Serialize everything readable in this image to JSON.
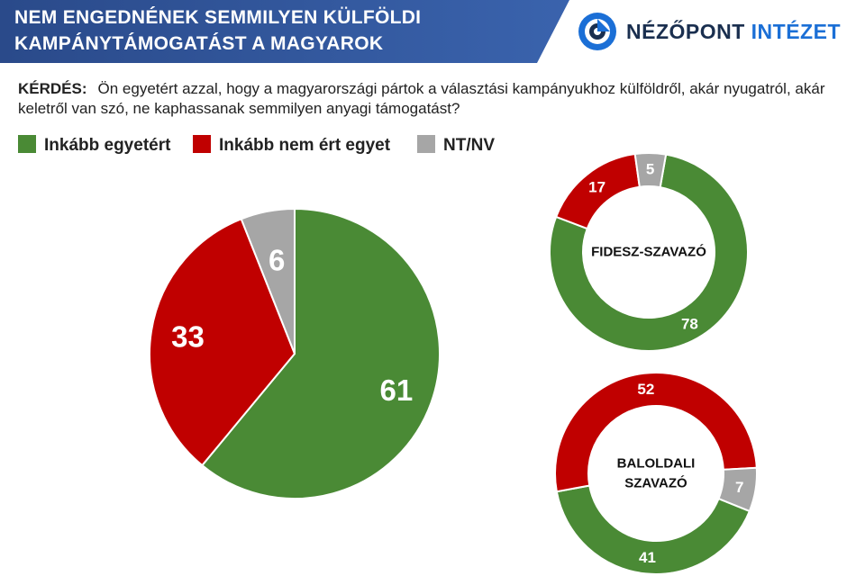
{
  "header": {
    "title_line1": "NEM ENGEDNÉNEK SEMMILYEN KÜLFÖLDI",
    "title_line2": "KAMPÁNYTÁMOGATÁST A MAGYAROK",
    "banner_color": "#2f4f8f",
    "logo_word1": "NÉZŐPONT",
    "logo_word2": "INTÉZET",
    "logo_icon": "nezopont-logo-icon"
  },
  "question": {
    "label": "KÉRDÉS:",
    "text": "Ön egyetért azzal, hogy a magyarországi pártok a választási kampányukhoz külföldről, akár nyugatról, akár keletről van szó, ne kaphassanak semmilyen anyagi támogatást?"
  },
  "legend": [
    {
      "label": "Inkább egyetért",
      "color": "#4a8a35"
    },
    {
      "label": "Inkább nem ért egyet",
      "color": "#c00000"
    },
    {
      "label": "NT/NV",
      "color": "#a6a6a6"
    }
  ],
  "chart_data": [
    {
      "type": "pie",
      "title": "",
      "categories": [
        "Inkább egyetért",
        "Inkább nem ért egyet",
        "NT/NV"
      ],
      "values": [
        61,
        33,
        6
      ],
      "colors": [
        "#4a8a35",
        "#c00000",
        "#a6a6a6"
      ]
    },
    {
      "type": "pie",
      "subtype": "donut",
      "center_label": "FIDESZ-SZAVAZÓ",
      "categories": [
        "Inkább egyetért",
        "Inkább nem ért egyet",
        "NT/NV"
      ],
      "values": [
        78,
        17,
        5
      ],
      "colors": [
        "#4a8a35",
        "#c00000",
        "#a6a6a6"
      ]
    },
    {
      "type": "pie",
      "subtype": "donut",
      "center_label": "BALOLDALI SZAVAZÓ",
      "center_label_lines": [
        "BALOLDALI",
        "SZAVAZÓ"
      ],
      "categories": [
        "Inkább egyetért",
        "Inkább nem ért egyet",
        "NT/NV"
      ],
      "values": [
        41,
        52,
        7
      ],
      "colors": [
        "#4a8a35",
        "#c00000",
        "#a6a6a6"
      ]
    }
  ]
}
